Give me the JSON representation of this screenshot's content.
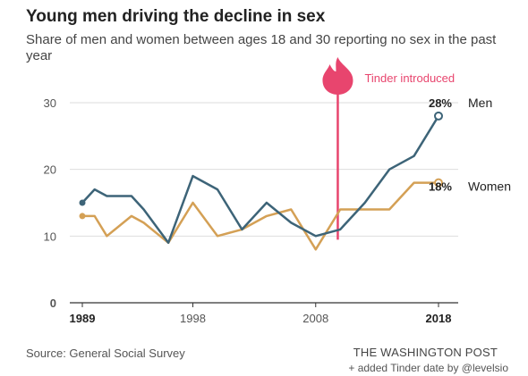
{
  "chart_data": {
    "type": "line",
    "title": "Young men driving the decline in sex",
    "subtitle": "Share of men and women between ages 18 and 30 reporting no sex in the past year",
    "ylim": [
      0,
      30
    ],
    "yticks": [
      0,
      10,
      20,
      30
    ],
    "xlim": [
      1989,
      2018
    ],
    "xticks": [
      1989,
      1998,
      2008,
      2018
    ],
    "grid": true,
    "series": [
      {
        "name": "Men",
        "color": "#3d6478",
        "end_label": "28%",
        "x": [
          1989,
          1990,
          1991,
          1993,
          1994,
          1996,
          1998,
          2000,
          2002,
          2004,
          2006,
          2008,
          2010,
          2012,
          2014,
          2016,
          2018
        ],
        "y": [
          15,
          17,
          16,
          16,
          14,
          9,
          19,
          17,
          11,
          15,
          12,
          10,
          11,
          15,
          20,
          22,
          28
        ]
      },
      {
        "name": "Women",
        "color": "#d4a055",
        "end_label": "18%",
        "x": [
          1989,
          1990,
          1991,
          1993,
          1994,
          1996,
          1998,
          2000,
          2002,
          2004,
          2006,
          2008,
          2010,
          2012,
          2014,
          2016,
          2018
        ],
        "y": [
          13,
          13,
          10,
          13,
          12,
          9,
          15,
          10,
          11,
          13,
          14,
          8,
          14,
          14,
          14,
          18,
          18
        ]
      }
    ],
    "annotations": [
      {
        "x": 2009.8,
        "label": "Tinder introduced",
        "color": "#e8456e"
      }
    ]
  },
  "footer": {
    "source": "Source: General Social Survey",
    "publisher": "THE WASHINGTON POST",
    "note": "+ added Tinder date by @levelsio"
  }
}
